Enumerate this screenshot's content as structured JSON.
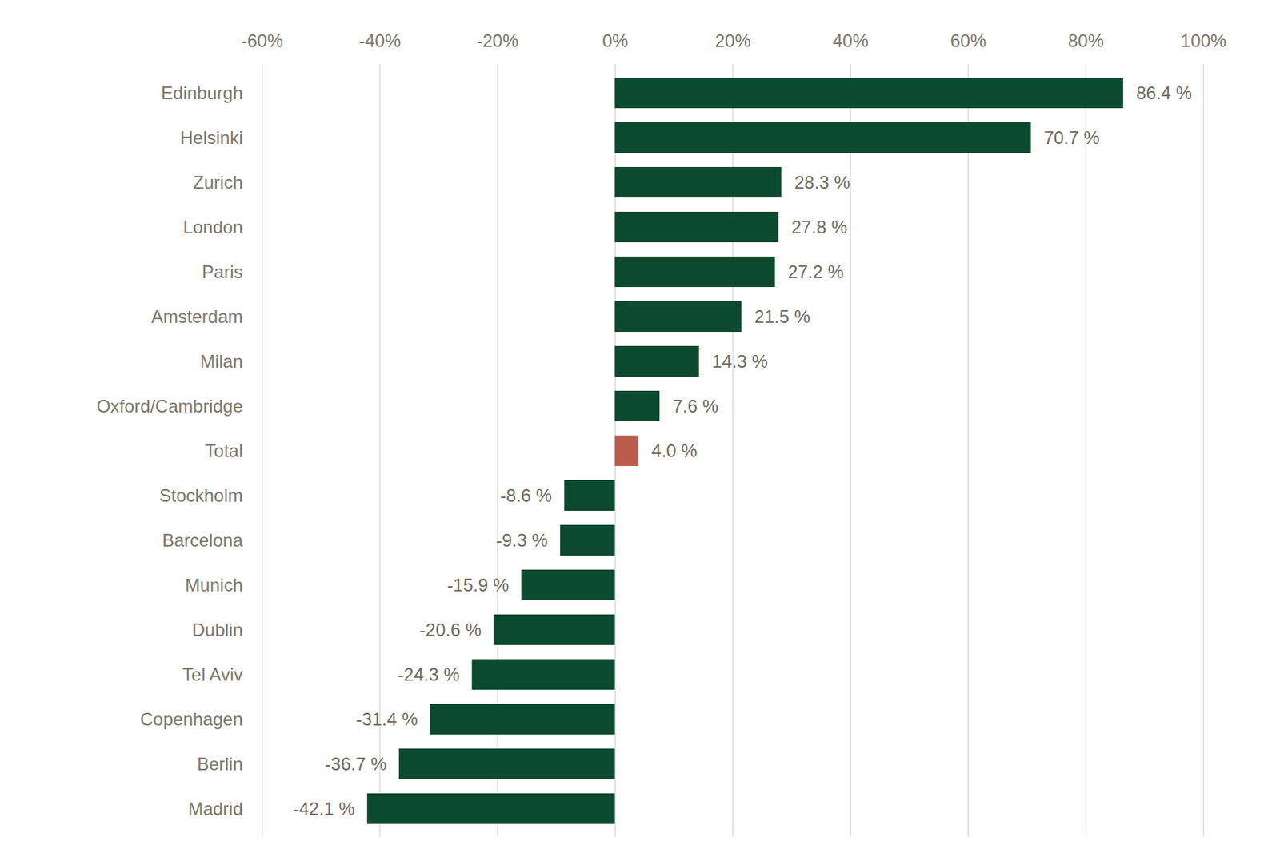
{
  "chart_data": {
    "type": "bar",
    "orientation": "horizontal",
    "categories": [
      "Edinburgh",
      "Helsinki",
      "Zurich",
      "London",
      "Paris",
      "Amsterdam",
      "Milan",
      "Oxford/Cambridge",
      "Total",
      "Stockholm",
      "Barcelona",
      "Munich",
      "Dublin",
      "Tel Aviv",
      "Copenhagen",
      "Berlin",
      "Madrid"
    ],
    "values": [
      86.4,
      70.7,
      28.3,
      27.8,
      27.2,
      21.5,
      14.3,
      7.6,
      4.0,
      -8.6,
      -9.3,
      -15.9,
      -20.6,
      -24.3,
      -31.4,
      -36.7,
      -42.1
    ],
    "value_labels": [
      "86.4 %",
      "70.7 %",
      "28.3 %",
      "27.8 %",
      "27.2 %",
      "21.5 %",
      "14.3 %",
      "7.6 %",
      "4.0 %",
      "-8.6 %",
      "-9.3 %",
      "-15.9 %",
      "-20.6 %",
      "-24.3 %",
      "-31.4 %",
      "-36.7 %",
      "-42.1 %"
    ],
    "colors": [
      "#0b4a2e",
      "#0b4a2e",
      "#0b4a2e",
      "#0b4a2e",
      "#0b4a2e",
      "#0b4a2e",
      "#0b4a2e",
      "#0b4a2e",
      "#b95c4c",
      "#0b4a2e",
      "#0b4a2e",
      "#0b4a2e",
      "#0b4a2e",
      "#0b4a2e",
      "#0b4a2e",
      "#0b4a2e",
      "#0b4a2e"
    ],
    "xlim": [
      -60,
      100
    ],
    "xticks": [
      {
        "value": -60,
        "label": "-60%"
      },
      {
        "value": -40,
        "label": "-40%"
      },
      {
        "value": -20,
        "label": "-20%"
      },
      {
        "value": 0,
        "label": "0%"
      },
      {
        "value": 20,
        "label": "20%"
      },
      {
        "value": 40,
        "label": "40%"
      },
      {
        "value": 60,
        "label": "60%"
      },
      {
        "value": 80,
        "label": "80%"
      },
      {
        "value": 100,
        "label": "100%"
      }
    ],
    "grid": true,
    "data_labels": true
  }
}
